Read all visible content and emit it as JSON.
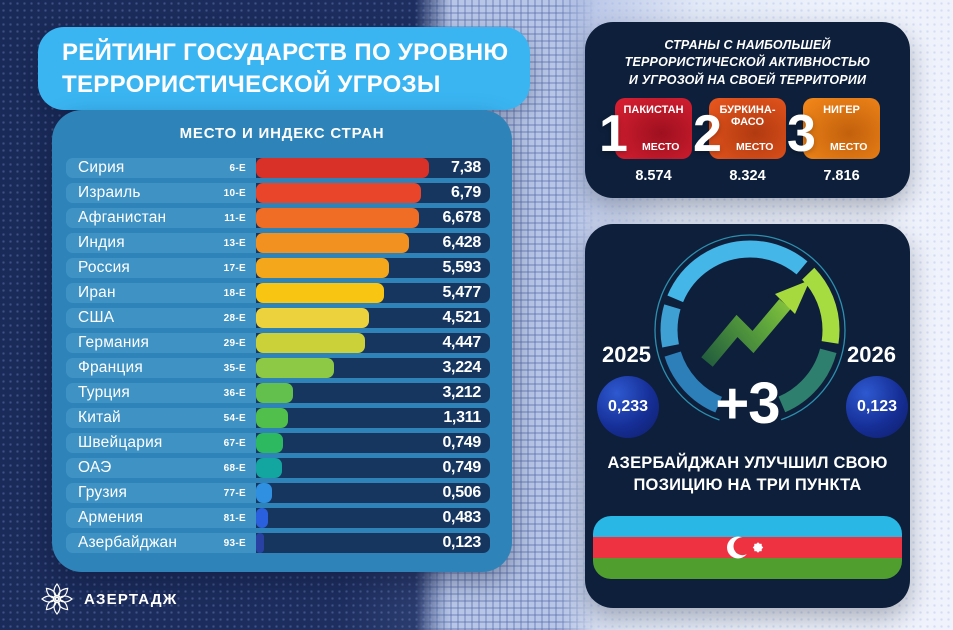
{
  "header": {
    "title_line1": "РЕЙТИНГ ГОСУДАРСТВ ПО УРОВНЮ",
    "title_line2": "ТЕРРОРИСТИЧЕСКОЙ УГРОЗЫ"
  },
  "ranking": {
    "header": "МЕСТО И ИНДЕКС СТРАН",
    "rows": [
      {
        "country": "Сирия",
        "rank": "6-Е",
        "value": "7,38",
        "bar_pct": 74,
        "color": "#d93128"
      },
      {
        "country": "Израиль",
        "rank": "10-Е",
        "value": "6,79",
        "bar_pct": 70.5,
        "color": "#e9452a"
      },
      {
        "country": "Афганистан",
        "rank": "11-Е",
        "value": "6,678",
        "bar_pct": 69.5,
        "color": "#ef6d24"
      },
      {
        "country": "Индия",
        "rank": "13-Е",
        "value": "6,428",
        "bar_pct": 65.5,
        "color": "#f39120"
      },
      {
        "country": "Россия",
        "rank": "17-Е",
        "value": "5,593",
        "bar_pct": 57,
        "color": "#f5a71b"
      },
      {
        "country": "Иран",
        "rank": "18-Е",
        "value": "5,477",
        "bar_pct": 54.5,
        "color": "#f8c513"
      },
      {
        "country": "США",
        "rank": "28-Е",
        "value": "4,521",
        "bar_pct": 48.5,
        "color": "#ecd23c"
      },
      {
        "country": "Германия",
        "rank": "29-Е",
        "value": "4,447",
        "bar_pct": 46.5,
        "color": "#cbd138"
      },
      {
        "country": "Франция",
        "rank": "35-Е",
        "value": "3,224",
        "bar_pct": 33.5,
        "color": "#8dc944"
      },
      {
        "country": "Турция",
        "rank": "36-Е",
        "value": "3,212",
        "bar_pct": 16,
        "color": "#64c04c"
      },
      {
        "country": "Китай",
        "rank": "54-Е",
        "value": "1,311",
        "bar_pct": 13.5,
        "color": "#50bf4b"
      },
      {
        "country": "Швейцария",
        "rank": "67-Е",
        "value": "0,749",
        "bar_pct": 11.5,
        "color": "#2db95f"
      },
      {
        "country": "ОАЭ",
        "rank": "68-Е",
        "value": "0,749",
        "bar_pct": 11,
        "color": "#13a6a0"
      },
      {
        "country": "Грузия",
        "rank": "77-Е",
        "value": "0,506",
        "bar_pct": 7,
        "color": "#2f90e2"
      },
      {
        "country": "Армения",
        "rank": "81-Е",
        "value": "0,483",
        "bar_pct": 5,
        "color": "#2a60de"
      },
      {
        "country": "Азербайджан",
        "rank": "93-Е",
        "value": "0,123",
        "bar_pct": 3.5,
        "color": "#2a41a4"
      }
    ]
  },
  "top3": {
    "title_line1": "СТРАНЫ С НАИБОЛЬШЕЙ",
    "title_line2": "ТЕРРОРИСТИЧЕСКОЙ АКТИВНОСТЬЮ",
    "title_line3": "И УГРОЗОЙ НА СВОЕЙ ТЕРРИТОРИИ",
    "place_label": "МЕСТО",
    "items": [
      {
        "place": "1",
        "country": "ПАКИСТАН",
        "value": "8.574",
        "color_main": "#d51f31",
        "color_dark": "#9e101f"
      },
      {
        "place": "2",
        "country": "БУРКИНА-\nФАСО",
        "value": "8.324",
        "color_main": "#e4541d",
        "color_dark": "#b13a10"
      },
      {
        "place": "3",
        "country": "НИГЕР",
        "value": "7.816",
        "color_main": "#ef8418",
        "color_dark": "#c2600c"
      }
    ]
  },
  "gauge": {
    "left_year": "2025",
    "left_value": "0,233",
    "right_year": "2026",
    "right_value": "0,123",
    "delta": "+3",
    "caption_line1": "АЗЕРБАЙДЖАН УЛУЧШИЛ СВОЮ",
    "caption_line2": "ПОЗИЦИЮ НА ТРИ ПУНКТА",
    "segment_colors": [
      "#44b6e8",
      "#a6dc40",
      "#2e7f6e",
      "#2d7fba",
      "#3fa0d4"
    ],
    "ring_outline_color": "#2d8fae",
    "arrow_color_start": "#235f3d",
    "arrow_color_end": "#a6d93e"
  },
  "flag": {
    "stripes": [
      "#29b7e6",
      "#ee3241",
      "#4f9e2e"
    ],
    "emblem_color": "#ffffff"
  },
  "footer": {
    "brand": "АЗЕРТАДЖ"
  },
  "chart_data": {
    "type": "bar",
    "orientation": "horizontal",
    "title": "МЕСТО И ИНДЕКС СТРАН",
    "categories": [
      "Сирия",
      "Израиль",
      "Афганистан",
      "Индия",
      "Россия",
      "Иран",
      "США",
      "Германия",
      "Франция",
      "Турция",
      "Китай",
      "Швейцария",
      "ОАЭ",
      "Грузия",
      "Армения",
      "Азербайджан"
    ],
    "ranks": [
      "6-Е",
      "10-Е",
      "11-Е",
      "13-Е",
      "17-Е",
      "18-Е",
      "28-Е",
      "29-Е",
      "35-Е",
      "36-Е",
      "54-Е",
      "67-Е",
      "68-Е",
      "77-Е",
      "81-Е",
      "93-Е"
    ],
    "values": [
      7.38,
      6.79,
      6.678,
      6.428,
      5.593,
      5.477,
      4.521,
      4.447,
      3.224,
      3.212,
      1.311,
      0.749,
      0.749,
      0.506,
      0.483,
      0.123
    ],
    "xlabel": "",
    "ylabel": "",
    "xlim": [
      0,
      10
    ],
    "grid": false,
    "legend": false,
    "top3_values": {
      "ПАКИСТАН": 8.574,
      "БУРКИНА-ФАСО": 8.324,
      "НИГЕР": 7.816
    },
    "azerbaijan_change": {
      "2025": 0.233,
      "2026": 0.123,
      "delta": "+3"
    }
  }
}
